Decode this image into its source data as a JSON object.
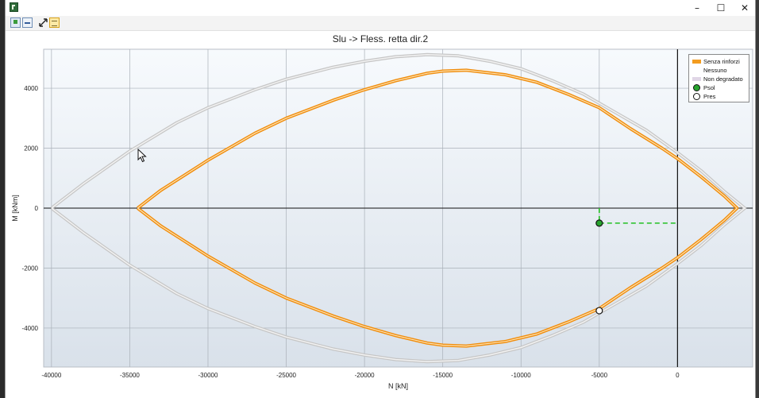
{
  "window": {
    "minimize_glyph": "–",
    "maximize_glyph": "☐",
    "close_glyph": "✕"
  },
  "toolbar": {
    "icons": [
      "export-icon",
      "minimize-view-icon",
      "fit-icon",
      "table-icon"
    ]
  },
  "colors": {
    "series_senza": "#f39c1f",
    "series_nessuno": "#c9c9c9",
    "psol_fill": "#27a32e",
    "pres_fill": "#ffffff",
    "plot_bg_top": "#f7fafd",
    "plot_bg_bottom": "#dde5ee"
  },
  "chart_data": {
    "type": "line",
    "title": "Slu -> Fless. retta dir.2",
    "xlabel": "N [kN]",
    "ylabel": "M [kNm]",
    "xlim": [
      -40500,
      4800
    ],
    "ylim": [
      -5300,
      5300
    ],
    "xticks": [
      -40000,
      -35000,
      -30000,
      -25000,
      -20000,
      -15000,
      -10000,
      -5000,
      0
    ],
    "yticks": [
      -4000,
      -2000,
      0,
      2000,
      4000
    ],
    "grid": true,
    "legend_position": "top-right",
    "legend": [
      "Senza rinforzi",
      "Nessuno",
      "Non degradato",
      "Psol",
      "Pres"
    ],
    "series": [
      {
        "name": "Senza rinforzi",
        "style": "orange-double-line",
        "points": [
          [
            -34500,
            0
          ],
          [
            -33000,
            600
          ],
          [
            -30000,
            1600
          ],
          [
            -27000,
            2500
          ],
          [
            -25000,
            3000
          ],
          [
            -22000,
            3600
          ],
          [
            -20000,
            3950
          ],
          [
            -18000,
            4250
          ],
          [
            -16000,
            4500
          ],
          [
            -15000,
            4570
          ],
          [
            -13500,
            4600
          ],
          [
            -11000,
            4450
          ],
          [
            -9000,
            4200
          ],
          [
            -7000,
            3800
          ],
          [
            -5000,
            3350
          ],
          [
            -3000,
            2650
          ],
          [
            -1000,
            2000
          ],
          [
            0,
            1650
          ],
          [
            1500,
            1050
          ],
          [
            3000,
            400
          ],
          [
            3800,
            0
          ],
          [
            3000,
            -400
          ],
          [
            1500,
            -1050
          ],
          [
            0,
            -1650
          ],
          [
            -1000,
            -2000
          ],
          [
            -3000,
            -2650
          ],
          [
            -5000,
            -3350
          ],
          [
            -7000,
            -3800
          ],
          [
            -9000,
            -4200
          ],
          [
            -11000,
            -4450
          ],
          [
            -13500,
            -4600
          ],
          [
            -15000,
            -4570
          ],
          [
            -16000,
            -4500
          ],
          [
            -18000,
            -4250
          ],
          [
            -20000,
            -3950
          ],
          [
            -22000,
            -3600
          ],
          [
            -25000,
            -3000
          ],
          [
            -27000,
            -2500
          ],
          [
            -30000,
            -1600
          ],
          [
            -33000,
            -600
          ],
          [
            -34500,
            0
          ]
        ]
      },
      {
        "name": "Nessuno",
        "style": "grey-double-line",
        "points": [
          [
            -40000,
            0
          ],
          [
            -38000,
            800
          ],
          [
            -35000,
            1900
          ],
          [
            -32000,
            2850
          ],
          [
            -30000,
            3350
          ],
          [
            -27000,
            3950
          ],
          [
            -25000,
            4300
          ],
          [
            -22000,
            4700
          ],
          [
            -20000,
            4900
          ],
          [
            -18000,
            5050
          ],
          [
            -16000,
            5120
          ],
          [
            -14000,
            5080
          ],
          [
            -12000,
            4900
          ],
          [
            -10000,
            4650
          ],
          [
            -8000,
            4250
          ],
          [
            -6000,
            3800
          ],
          [
            -4000,
            3200
          ],
          [
            -2000,
            2600
          ],
          [
            0,
            1850
          ],
          [
            1500,
            1250
          ],
          [
            3000,
            550
          ],
          [
            4300,
            0
          ],
          [
            3000,
            -550
          ],
          [
            1500,
            -1250
          ],
          [
            0,
            -1850
          ],
          [
            -2000,
            -2600
          ],
          [
            -4000,
            -3200
          ],
          [
            -6000,
            -3800
          ],
          [
            -8000,
            -4250
          ],
          [
            -10000,
            -4650
          ],
          [
            -12000,
            -4900
          ],
          [
            -14000,
            -5080
          ],
          [
            -16000,
            -5120
          ],
          [
            -18000,
            -5050
          ],
          [
            -20000,
            -4900
          ],
          [
            -22000,
            -4700
          ],
          [
            -25000,
            -4300
          ],
          [
            -27000,
            -3950
          ],
          [
            -30000,
            -3350
          ],
          [
            -32000,
            -2850
          ],
          [
            -35000,
            -1900
          ],
          [
            -38000,
            -800
          ],
          [
            -40000,
            0
          ]
        ]
      }
    ],
    "markers": [
      {
        "name": "Psol",
        "x": -5000,
        "y": -500
      },
      {
        "name": "Pres",
        "x": -5000,
        "y": -3420
      }
    ],
    "reference_lines": [
      {
        "type": "vertical",
        "x": 0
      },
      {
        "type": "horizontal",
        "y": 0
      }
    ]
  }
}
